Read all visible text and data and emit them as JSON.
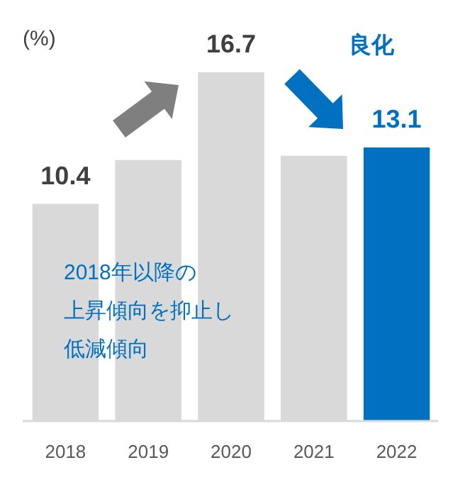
{
  "chart_data": {
    "type": "bar",
    "ylabel": "(%)",
    "categories": [
      "2018",
      "2019",
      "2020",
      "2021",
      "2022"
    ],
    "values": [
      10.4,
      12.5,
      16.7,
      12.7,
      13.1
    ],
    "colors": [
      "#d9d9d9",
      "#d9d9d9",
      "#d9d9d9",
      "#d9d9d9",
      "#0070c0"
    ],
    "value_labels": [
      "10.4",
      null,
      "16.7",
      null,
      "13.1"
    ],
    "annotations": [
      "良化",
      "2018年以降の",
      "上昇傾向を抑止し",
      "低減傾向"
    ]
  }
}
